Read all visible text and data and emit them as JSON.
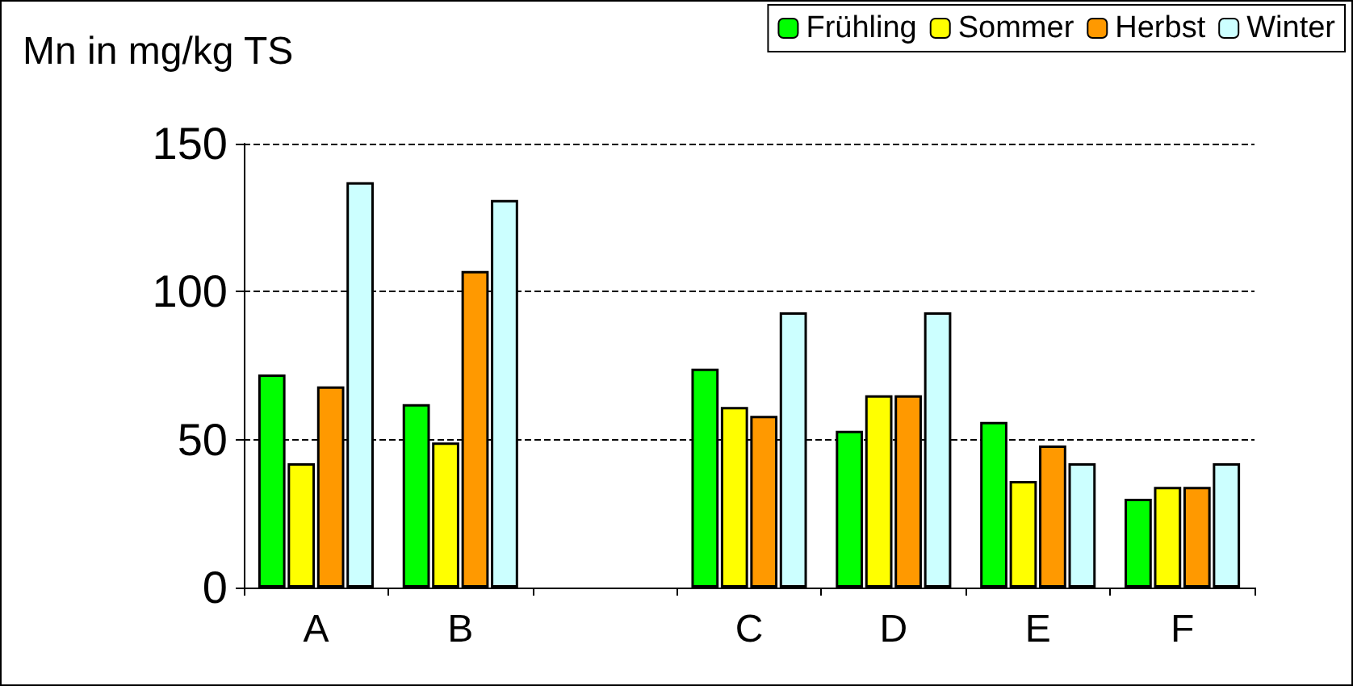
{
  "chart_data": {
    "type": "bar",
    "ylabel": "Mn in mg/kg TS",
    "categories": [
      "A",
      "B",
      null,
      "C",
      "D",
      "E",
      "F"
    ],
    "series": [
      {
        "name": "Frühling",
        "color": "#00ff00",
        "values": [
          72,
          62,
          null,
          74,
          53,
          56,
          30
        ]
      },
      {
        "name": "Sommer",
        "color": "#ffff00",
        "values": [
          42,
          49,
          null,
          61,
          65,
          36,
          34
        ]
      },
      {
        "name": "Herbst",
        "color": "#ff9900",
        "values": [
          68,
          107,
          null,
          58,
          65,
          48,
          34
        ]
      },
      {
        "name": "Winter",
        "color": "#ccffff",
        "values": [
          137,
          131,
          null,
          93,
          93,
          42,
          42
        ]
      }
    ],
    "ylim": [
      0,
      150
    ],
    "yticks": [
      0,
      50,
      100,
      150
    ],
    "grid": "y",
    "legend": "top right"
  }
}
